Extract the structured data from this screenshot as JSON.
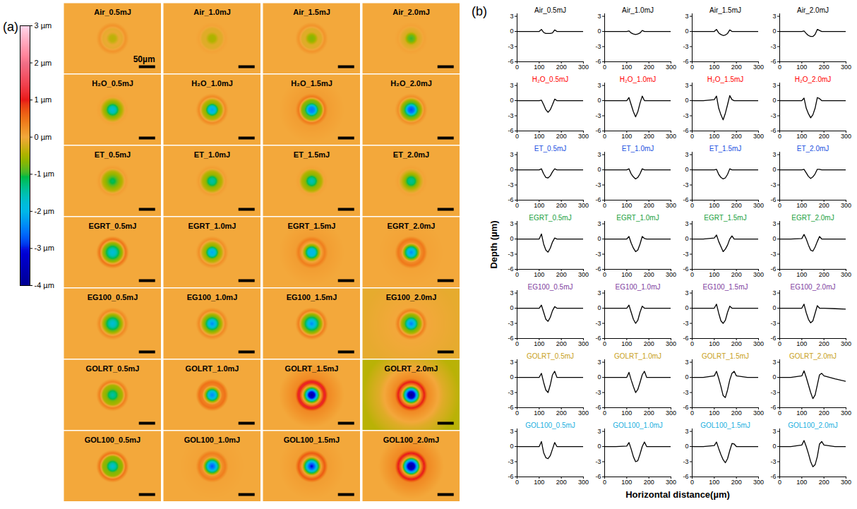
{
  "chart_data": [
    {
      "panel_label": "(a)",
      "type": "heatmap",
      "titles": [
        [
          "Air_0.5mJ",
          "Air_1.0mJ",
          "Air_1.5mJ",
          "Air_2.0mJ"
        ],
        [
          "H₂O_0.5mJ",
          "H₂O_1.0mJ",
          "H₂O_1.5mJ",
          "H₂O_2.0mJ"
        ],
        [
          "ET_0.5mJ",
          "ET_1.0mJ",
          "ET_1.5mJ",
          "ET_2.0mJ"
        ],
        [
          "EGRT_0.5mJ",
          "EGRT_1.0mJ",
          "EGRT_1.5mJ",
          "EGRT_2.0mJ"
        ],
        [
          "EG100_0.5mJ",
          "EG100_1.0mJ",
          "EG100_1.5mJ",
          "EG100_2.0mJ"
        ],
        [
          "GOLRT_0.5mJ",
          "GOLRT_1.0mJ",
          "GOLRT_1.5mJ",
          "GOLRT_2.0mJ"
        ],
        [
          "GOL100_0.5mJ",
          "GOL100_1.0mJ",
          "GOL100_1.5mJ",
          "GOL100_2.0mJ"
        ]
      ],
      "scale_bar": {
        "label": "50µm",
        "length": 50
      },
      "colorbar": {
        "range": [
          -4,
          3
        ],
        "ticks": [
          {
            "value": -4,
            "label": "-4 µm"
          },
          {
            "value": -3,
            "label": "-3 µm"
          },
          {
            "value": -2,
            "label": "-2 µm"
          },
          {
            "value": -1,
            "label": "-1 µm"
          },
          {
            "value": 0,
            "label": "0 µm"
          },
          {
            "value": 1,
            "label": "1 µm"
          },
          {
            "value": 2,
            "label": "2 µm"
          },
          {
            "value": 3,
            "label": "3 µm"
          }
        ],
        "colors": [
          "#000000",
          "#1010e0",
          "#00b8e8",
          "#30b830",
          "#f3a83b",
          "#e81818",
          "#f07088",
          "#ffffff"
        ]
      }
    },
    {
      "panel_label": "(b)",
      "type": "line",
      "color": "#000000",
      "x_label": "Horizontal distance(µm)",
      "y_label": "Depth (µm)",
      "xlim": [
        0,
        300
      ],
      "xticks": [
        0,
        100,
        200,
        300
      ],
      "ylim": [
        -6,
        3.5
      ],
      "yticks": [
        -6,
        -3,
        0,
        3
      ],
      "x": [
        0,
        50,
        100,
        110,
        120,
        130,
        140,
        150,
        160,
        170,
        180,
        190,
        200,
        250,
        300
      ],
      "groups": [
        {
          "color": "#000000",
          "series": [
            {
              "name": "Air_0.5mJ",
              "values": [
                0,
                0,
                0,
                0.4,
                -0.2,
                -0.4,
                -0.4,
                -0.4,
                -0.3,
                0.3,
                0,
                0,
                0,
                0,
                0
              ]
            },
            {
              "name": "Air_1.0mJ",
              "values": [
                0,
                0,
                0,
                0.1,
                -0.3,
                -0.5,
                -0.6,
                -0.5,
                -0.3,
                0.2,
                0,
                0,
                0,
                0,
                0
              ]
            },
            {
              "name": "Air_1.5mJ",
              "values": [
                0,
                0,
                0,
                0.4,
                -0.3,
                -0.6,
                -0.8,
                -0.7,
                -0.4,
                0.3,
                0,
                0,
                0,
                0,
                0
              ]
            },
            {
              "name": "Air_2.0mJ",
              "values": [
                0,
                0,
                0,
                0.1,
                -0.4,
                -0.8,
                -1.0,
                -1.0,
                -0.6,
                0.4,
                0.2,
                0,
                0,
                0,
                0
              ]
            }
          ]
        },
        {
          "color": "#ff0000",
          "series": [
            {
              "name": "H₂O_0.5mJ",
              "values": [
                0,
                0,
                0,
                0.1,
                -0.8,
                -1.8,
                -2.3,
                -1.8,
                -0.8,
                0.3,
                0,
                0,
                0,
                0,
                0
              ]
            },
            {
              "name": "H₂O_1.0mJ",
              "values": [
                0,
                0,
                0,
                0.6,
                -0.8,
                -2.2,
                -3.2,
                -2.2,
                -0.5,
                0.9,
                0,
                0,
                0,
                0,
                0
              ]
            },
            {
              "name": "H₂O_1.5mJ",
              "values": [
                0,
                0,
                0.2,
                0.9,
                -1.5,
                -2.8,
                -3.8,
                -2.5,
                -0.8,
                1.0,
                0.2,
                0,
                0,
                0,
                0
              ]
            },
            {
              "name": "H₂O_2.0mJ",
              "values": [
                0,
                0,
                0,
                0.5,
                -1.5,
                -2.6,
                -3.4,
                -2.8,
                -1.5,
                0.6,
                0.4,
                0,
                0,
                0,
                0
              ]
            }
          ]
        },
        {
          "color": "#2050e0",
          "series": [
            {
              "name": "ET_0.5mJ",
              "values": [
                0,
                0,
                0,
                0.2,
                -0.8,
                -1.5,
                -1.6,
                -1.2,
                -0.4,
                0.2,
                0,
                0,
                0,
                0,
                0
              ]
            },
            {
              "name": "ET_1.0mJ",
              "values": [
                0,
                0,
                0,
                0.2,
                -0.8,
                -1.4,
                -1.8,
                -1.5,
                -0.8,
                0.2,
                0,
                0,
                0,
                0,
                0
              ]
            },
            {
              "name": "ET_1.5mJ",
              "values": [
                0,
                0,
                0,
                0.1,
                -0.9,
                -1.5,
                -1.8,
                -1.6,
                -0.9,
                0.2,
                0,
                0,
                0,
                0,
                0
              ]
            },
            {
              "name": "ET_2.0mJ",
              "values": [
                0,
                0,
                0,
                0.1,
                -0.6,
                -1.3,
                -1.7,
                -1.4,
                -0.8,
                0.1,
                0.1,
                0,
                0,
                0,
                0
              ]
            }
          ]
        },
        {
          "color": "#20a040",
          "series": [
            {
              "name": "EGRT_0.5mJ",
              "values": [
                0,
                0,
                0,
                1.0,
                -1.0,
                -2.2,
                -2.6,
                -1.8,
                -0.6,
                0.2,
                0,
                0,
                0,
                0,
                0
              ]
            },
            {
              "name": "EGRT_1.0mJ",
              "values": [
                0,
                0,
                0,
                0.5,
                -0.8,
                -1.8,
                -2.5,
                -2.2,
                -1.0,
                0.5,
                0.1,
                0,
                0,
                0,
                0
              ]
            },
            {
              "name": "EGRT_1.5mJ",
              "values": [
                0,
                0,
                0.2,
                0.8,
                -0.5,
                -1.5,
                -2.5,
                -2.0,
                -1.2,
                0,
                0.6,
                0,
                0,
                0,
                0
              ]
            },
            {
              "name": "EGRT_2.0mJ",
              "values": [
                0,
                0,
                0.1,
                0.9,
                0,
                -1.2,
                -2.2,
                -2.4,
                -1.6,
                -0.5,
                0.5,
                0,
                0,
                0,
                0
              ]
            }
          ]
        },
        {
          "color": "#8040a0",
          "series": [
            {
              "name": "EG100_0.5mJ",
              "values": [
                0,
                0,
                0,
                0.6,
                -0.8,
                -2.2,
                -2.6,
                -1.8,
                -0.5,
                0.3,
                0,
                0,
                0,
                0,
                0
              ]
            },
            {
              "name": "EG100_1.0mJ",
              "values": [
                0,
                0,
                0,
                0.6,
                -0.8,
                -2.2,
                -3.0,
                -2.4,
                -0.8,
                0.4,
                0,
                0,
                0,
                0,
                0
              ]
            },
            {
              "name": "EG100_1.5mJ",
              "values": [
                0,
                0,
                0,
                0.8,
                -1.0,
                -2.5,
                -3.0,
                -2.4,
                -0.8,
                0.4,
                0,
                0,
                0,
                0,
                0
              ]
            },
            {
              "name": "EG100_2.0mJ",
              "values": [
                0,
                0,
                0,
                0.8,
                -0.9,
                -2.2,
                -2.9,
                -2.5,
                -1.0,
                0.5,
                0,
                0,
                0,
                -0.1,
                -0.2
              ]
            }
          ]
        },
        {
          "color": "#c8a020",
          "series": [
            {
              "name": "GOLRT_0.5mJ",
              "values": [
                0,
                0,
                0,
                0.8,
                -1.0,
                -2.5,
                -3.0,
                -1.5,
                0.5,
                1.2,
                0,
                0,
                0,
                0,
                0
              ]
            },
            {
              "name": "GOLRT_1.0mJ",
              "values": [
                0,
                0,
                0,
                1.0,
                -0.5,
                -1.8,
                -3.0,
                -2.4,
                -1.0,
                0.5,
                1.2,
                0,
                0,
                0,
                0
              ]
            },
            {
              "name": "GOLRT_1.5mJ",
              "values": [
                0,
                0,
                0.3,
                1.2,
                -0.2,
                -1.8,
                -3.6,
                -4.0,
                -2.5,
                -0.5,
                0.8,
                1.2,
                0.3,
                0,
                0
              ]
            },
            {
              "name": "GOLRT_2.0mJ",
              "values": [
                0,
                0,
                0.3,
                1.3,
                0,
                -1.5,
                -3.0,
                -4.2,
                -3.5,
                -1.5,
                0.5,
                0.8,
                0.3,
                -0.3,
                -0.8
              ]
            }
          ]
        },
        {
          "color": "#20b0e0",
          "series": [
            {
              "name": "GOL100_0.5mJ",
              "values": [
                0,
                0,
                0,
                1.0,
                -1.2,
                -2.2,
                -2.4,
                -1.8,
                -0.5,
                0.8,
                0,
                0,
                0,
                0,
                0
              ]
            },
            {
              "name": "GOL100_1.0mJ",
              "values": [
                0,
                0,
                0.1,
                0.8,
                -0.5,
                -2.0,
                -3.0,
                -2.8,
                -1.5,
                0,
                0.9,
                0,
                0,
                0,
                0
              ]
            },
            {
              "name": "GOL100_1.5mJ",
              "values": [
                0,
                0,
                0.2,
                0.9,
                -0.4,
                -1.6,
                -2.6,
                -3.2,
                -2.4,
                -0.8,
                0.6,
                0.5,
                0,
                0,
                0
              ]
            },
            {
              "name": "GOL100_2.0mJ",
              "values": [
                0,
                0,
                0.3,
                1.2,
                0,
                -1.4,
                -3.0,
                -4.0,
                -3.6,
                -2.0,
                0.5,
                1.0,
                0.3,
                0,
                0
              ]
            }
          ]
        }
      ]
    }
  ]
}
